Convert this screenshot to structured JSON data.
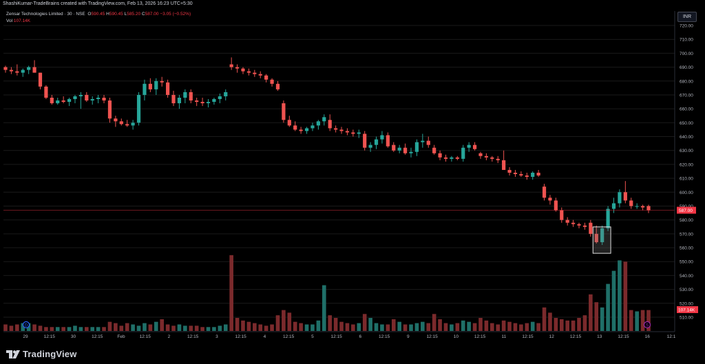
{
  "header": {
    "attribution": "ShashiKumar-TradeBrains created with TradingView.com, Feb 13, 2026 16:23 UTC+5:30",
    "symbol": "Zensar Technologies Limited · 30 · NSE",
    "o_label": "O",
    "o_value": "590.45",
    "h_label": "H",
    "h_value": "590.45",
    "l_label": "L",
    "l_value": "585.20",
    "c_label": "C",
    "c_value": "587.00",
    "change": "−3.05 (−0.52%)",
    "vol_label": "Vol",
    "vol_value": "107.14K"
  },
  "currency": "INR",
  "brand": {
    "name": "TradingView"
  },
  "colors": {
    "up": "#26a69a",
    "down": "#ef5350",
    "vol_up": "#1f6f68",
    "vol_down": "#7b2a2c",
    "grid": "#1a1a1a",
    "text": "#b2b5be",
    "price_line": "#f23645"
  },
  "chart_data": {
    "type": "candlestick",
    "y_axis": {
      "min": 510,
      "max": 720,
      "step": 10,
      "tick_labels": [
        "720.00",
        "710.00",
        "700.00",
        "690.00",
        "680.00",
        "670.00",
        "660.00",
        "650.00",
        "640.00",
        "630.00",
        "620.00",
        "610.00",
        "600.00",
        "590.00",
        "580.00",
        "570.00",
        "560.00",
        "550.00",
        "540.00",
        "530.00",
        "520.00",
        "510.00"
      ]
    },
    "x_tick_labels": [
      "29",
      "12:15",
      "30",
      "12:15",
      "Feb",
      "12:15",
      "2",
      "12:15",
      "3",
      "12:15",
      "4",
      "12:15",
      "5",
      "12:15",
      "6",
      "12:15",
      "9",
      "12:15",
      "10",
      "12:15",
      "11",
      "12:15",
      "12",
      "12:15",
      "13",
      "12:15",
      "16",
      "12:1"
    ],
    "last_price_label": "587.00",
    "last_volume_label": "107.14K",
    "event_markers": [
      "D",
      "S"
    ],
    "candles_ohlc": [
      [
        690,
        691,
        686,
        688
      ],
      [
        688,
        690,
        685,
        687
      ],
      [
        687,
        692,
        684,
        686
      ],
      [
        686,
        689,
        683,
        688
      ],
      [
        688,
        691,
        685,
        690
      ],
      [
        690,
        695,
        686,
        686
      ],
      [
        686,
        686,
        674,
        676
      ],
      [
        676,
        677,
        667,
        668
      ],
      [
        668,
        670,
        663,
        664
      ],
      [
        664,
        668,
        663,
        666
      ],
      [
        666,
        669,
        664,
        665
      ],
      [
        665,
        668,
        662,
        667
      ],
      [
        667,
        670,
        664,
        669
      ],
      [
        669,
        672,
        660,
        670
      ],
      [
        670,
        672,
        665,
        666
      ],
      [
        666,
        669,
        663,
        667
      ],
      [
        667,
        670,
        664,
        668
      ],
      [
        668,
        670,
        664,
        666
      ],
      [
        666,
        668,
        650,
        653
      ],
      [
        653,
        655,
        647,
        651
      ],
      [
        651,
        653,
        648,
        649
      ],
      [
        649,
        652,
        647,
        648
      ],
      [
        648,
        652,
        645,
        650
      ],
      [
        650,
        672,
        648,
        670
      ],
      [
        670,
        681,
        666,
        678
      ],
      [
        678,
        682,
        672,
        674
      ],
      [
        674,
        682,
        670,
        680
      ],
      [
        680,
        683,
        676,
        679
      ],
      [
        679,
        681,
        668,
        670
      ],
      [
        670,
        673,
        662,
        664
      ],
      [
        664,
        670,
        660,
        668
      ],
      [
        668,
        674,
        664,
        672
      ],
      [
        672,
        674,
        664,
        666
      ],
      [
        666,
        668,
        662,
        665
      ],
      [
        665,
        668,
        662,
        664
      ],
      [
        664,
        667,
        661,
        665
      ],
      [
        665,
        668,
        663,
        667
      ],
      [
        667,
        671,
        664,
        669
      ],
      [
        669,
        674,
        666,
        672
      ],
      [
        692,
        697,
        688,
        690
      ],
      [
        690,
        692,
        686,
        689
      ],
      [
        689,
        690,
        685,
        687
      ],
      [
        687,
        689,
        684,
        686
      ],
      [
        686,
        688,
        683,
        685
      ],
      [
        685,
        687,
        682,
        684
      ],
      [
        684,
        685,
        679,
        681
      ],
      [
        681,
        682,
        676,
        678
      ],
      [
        678,
        680,
        673,
        674
      ],
      [
        664,
        666,
        650,
        652
      ],
      [
        652,
        655,
        647,
        648
      ],
      [
        648,
        651,
        644,
        645
      ],
      [
        645,
        647,
        642,
        644
      ],
      [
        644,
        647,
        642,
        646
      ],
      [
        646,
        650,
        644,
        648
      ],
      [
        648,
        652,
        645,
        651
      ],
      [
        651,
        656,
        648,
        654
      ],
      [
        652,
        656,
        644,
        646
      ],
      [
        646,
        648,
        643,
        645
      ],
      [
        645,
        647,
        642,
        644
      ],
      [
        644,
        646,
        641,
        643
      ],
      [
        643,
        645,
        640,
        642
      ],
      [
        642,
        645,
        639,
        643
      ],
      [
        642,
        644,
        630,
        632
      ],
      [
        632,
        636,
        629,
        634
      ],
      [
        634,
        640,
        631,
        638
      ],
      [
        638,
        644,
        635,
        641
      ],
      [
        641,
        643,
        632,
        633
      ],
      [
        634,
        636,
        629,
        630
      ],
      [
        630,
        634,
        628,
        632
      ],
      [
        632,
        635,
        627,
        628
      ],
      [
        628,
        632,
        625,
        629
      ],
      [
        629,
        638,
        626,
        636
      ],
      [
        636,
        642,
        632,
        637
      ],
      [
        637,
        640,
        632,
        634
      ],
      [
        632,
        634,
        627,
        628
      ],
      [
        628,
        630,
        623,
        625
      ],
      [
        625,
        627,
        622,
        624
      ],
      [
        624,
        626,
        622,
        625
      ],
      [
        625,
        626,
        623,
        624
      ],
      [
        624,
        634,
        622,
        632
      ],
      [
        632,
        636,
        629,
        634
      ],
      [
        634,
        636,
        630,
        631
      ],
      [
        628,
        629,
        624,
        626
      ],
      [
        626,
        628,
        623,
        625
      ],
      [
        625,
        626,
        622,
        624
      ],
      [
        624,
        626,
        621,
        623
      ],
      [
        623,
        630,
        618,
        616
      ],
      [
        616,
        618,
        612,
        614
      ],
      [
        614,
        616,
        611,
        613
      ],
      [
        613,
        615,
        611,
        612
      ],
      [
        612,
        614,
        609,
        611
      ],
      [
        611,
        615,
        609,
        614
      ],
      [
        614,
        616,
        611,
        612
      ],
      [
        604,
        606,
        594,
        596
      ],
      [
        596,
        598,
        591,
        594
      ],
      [
        594,
        596,
        586,
        587
      ],
      [
        587,
        589,
        578,
        580
      ],
      [
        580,
        582,
        576,
        578
      ],
      [
        578,
        580,
        575,
        577
      ],
      [
        577,
        578,
        574,
        576
      ],
      [
        576,
        578,
        573,
        575
      ],
      [
        578,
        580,
        568,
        570
      ],
      [
        570,
        576,
        563,
        564
      ],
      [
        564,
        576,
        562,
        574
      ],
      [
        574,
        590,
        572,
        588
      ],
      [
        588,
        596,
        585,
        592
      ],
      [
        592,
        602,
        589,
        600
      ],
      [
        600,
        608,
        592,
        594
      ],
      [
        594,
        596,
        588,
        590
      ],
      [
        590,
        592,
        588,
        590
      ],
      [
        590,
        591,
        587,
        589
      ],
      [
        590,
        591,
        585,
        587
      ]
    ],
    "volumes": [
      5,
      4,
      5,
      6,
      6,
      5,
      4,
      3,
      3,
      3,
      3,
      3,
      4,
      3,
      3,
      3,
      3,
      3,
      7,
      6,
      4,
      6,
      5,
      4,
      6,
      5,
      7,
      9,
      5,
      4,
      5,
      4,
      4,
      4,
      3,
      3,
      3,
      4,
      5,
      58,
      10,
      8,
      7,
      6,
      5,
      4,
      5,
      12,
      16,
      14,
      7,
      6,
      5,
      5,
      8,
      35,
      12,
      10,
      7,
      6,
      5,
      6,
      13,
      10,
      6,
      5,
      5,
      9,
      7,
      5,
      5,
      6,
      7,
      6,
      13,
      9,
      6,
      5,
      6,
      8,
      7,
      6,
      10,
      8,
      6,
      5,
      8,
      7,
      6,
      5,
      6,
      7,
      6,
      18,
      14,
      10,
      9,
      8,
      8,
      10,
      12,
      28,
      22,
      18,
      36,
      46,
      54,
      53,
      16,
      15,
      16,
      16
    ]
  }
}
